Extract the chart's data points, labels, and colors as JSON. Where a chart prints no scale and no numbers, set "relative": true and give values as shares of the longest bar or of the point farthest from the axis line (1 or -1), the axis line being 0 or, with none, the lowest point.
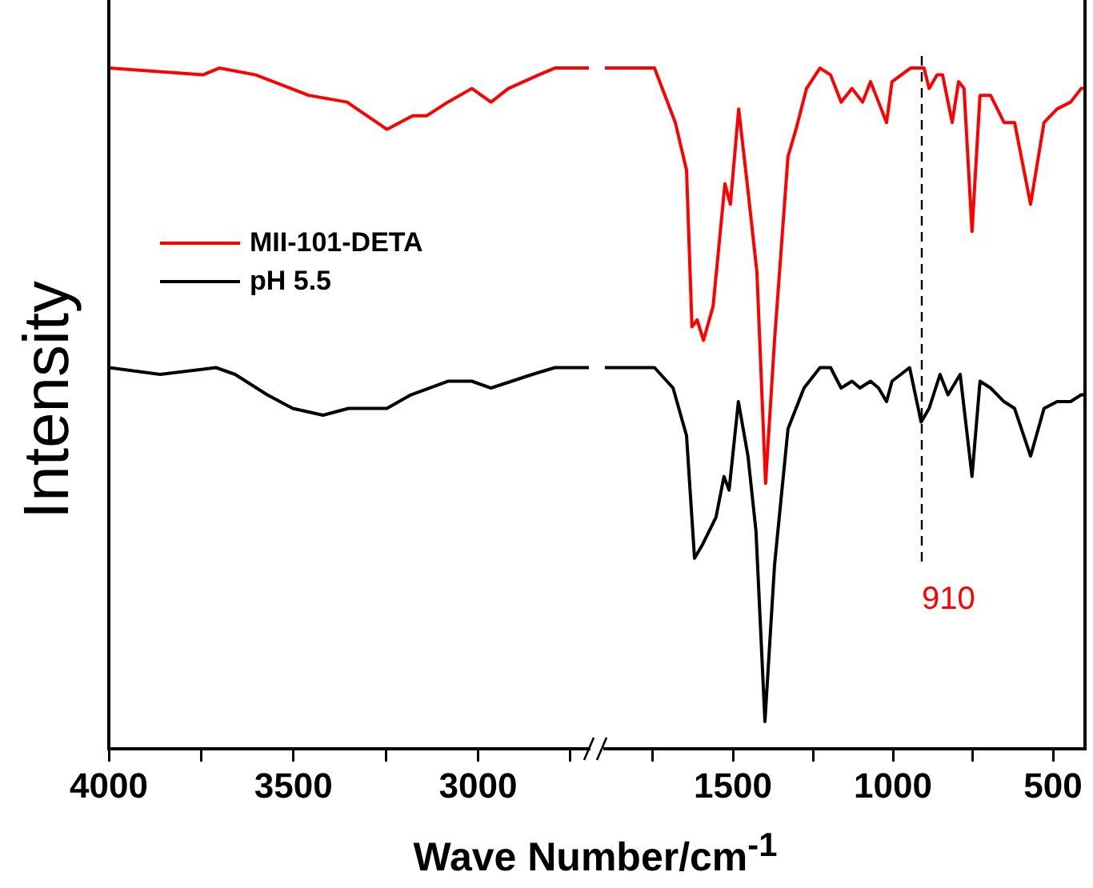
{
  "chart_data": [
    {
      "type": "line",
      "xlabel": "Wave Number/cm$^{-1}$",
      "ylabel": "Intensity",
      "relative": true,
      "tick_labels": "x",
      "legend": "left",
      "line_style": "solid",
      "marker": "none",
      "xlim": [
        4000,
        2700
      ],
      "xticks": [
        4000,
        {
          "value": 3750,
          "label": null
        },
        3500,
        {
          "value": 3250,
          "label": null
        },
        3000,
        {
          "value": 2750,
          "label": null
        }
      ],
      "series": [
        {
          "name": "MII-101-DETA",
          "color": "#ff0000",
          "x": [
            4000,
            3745,
            3701,
            3602,
            3459,
            3355,
            3247,
            3177,
            3139,
            3082,
            3017,
            2965,
            2918,
            2836,
            2792,
            2700
          ],
          "values": [
            1.0,
            0.99,
            1.0,
            0.99,
            0.96,
            0.95,
            0.91,
            0.93,
            0.93,
            0.95,
            0.97,
            0.95,
            0.97,
            0.99,
            1.0,
            1.0
          ]
        },
        {
          "name": "pH 5.5",
          "color": "#000000",
          "x": [
            4000,
            3861,
            3710,
            3658,
            3571,
            3502,
            3420,
            3351,
            3247,
            3182,
            3082,
            3017,
            2965,
            2853,
            2792,
            2700
          ],
          "values": [
            0.56,
            0.55,
            0.56,
            0.55,
            0.52,
            0.5,
            0.49,
            0.5,
            0.5,
            0.52,
            0.54,
            0.54,
            0.53,
            0.55,
            0.56,
            0.56
          ]
        }
      ]
    },
    {
      "type": "line",
      "relative": true,
      "tick_labels": "x",
      "line_style": "solid",
      "marker": "none",
      "xlim": [
        1900,
        400
      ],
      "xticks": [
        {
          "value": 1750,
          "label": null
        },
        1500,
        {
          "value": 1250,
          "label": null
        },
        1000,
        {
          "value": 750,
          "label": null
        },
        500
      ],
      "ref_lines": [
        {
          "axis": "x",
          "value": 910,
          "label": "910",
          "color": "#000000",
          "line_style": "dashed"
        }
      ],
      "series": [
        {
          "color": "#ff0000",
          "x": [
            1900,
            1745,
            1680,
            1645,
            1628,
            1612,
            1592,
            1562,
            1525,
            1508,
            1482,
            1453,
            1425,
            1398,
            1370,
            1328,
            1303,
            1270,
            1228,
            1195,
            1162,
            1128,
            1095,
            1070,
            1045,
            1020,
            1003,
            945,
            903,
            887,
            862,
            845,
            815,
            795,
            778,
            753,
            728,
            695,
            653,
            620,
            570,
            528,
            487,
            445,
            412,
            400
          ],
          "values": [
            1.0,
            1.0,
            0.92,
            0.85,
            0.62,
            0.63,
            0.6,
            0.65,
            0.83,
            0.8,
            0.94,
            0.82,
            0.7,
            0.39,
            0.6,
            0.87,
            0.91,
            0.97,
            1.0,
            0.99,
            0.95,
            0.97,
            0.95,
            0.98,
            0.95,
            0.92,
            0.98,
            1.0,
            1.0,
            0.97,
            0.99,
            0.99,
            0.92,
            0.98,
            0.97,
            0.76,
            0.96,
            0.96,
            0.92,
            0.92,
            0.8,
            0.92,
            0.94,
            0.95,
            0.97,
            0.97
          ]
        },
        {
          "color": "#000000",
          "x": [
            1900,
            1745,
            1687,
            1645,
            1620,
            1595,
            1553,
            1528,
            1512,
            1483,
            1453,
            1428,
            1400,
            1370,
            1328,
            1278,
            1228,
            1195,
            1162,
            1128,
            1103,
            1070,
            1045,
            1020,
            1003,
            948,
            912,
            887,
            853,
            828,
            790,
            753,
            728,
            695,
            653,
            620,
            570,
            528,
            487,
            445,
            412,
            400
          ],
          "values": [
            0.56,
            0.56,
            0.53,
            0.46,
            0.28,
            0.3,
            0.34,
            0.4,
            0.38,
            0.51,
            0.43,
            0.32,
            0.04,
            0.27,
            0.47,
            0.53,
            0.56,
            0.56,
            0.53,
            0.54,
            0.53,
            0.54,
            0.53,
            0.51,
            0.54,
            0.56,
            0.48,
            0.5,
            0.55,
            0.52,
            0.55,
            0.4,
            0.54,
            0.53,
            0.51,
            0.5,
            0.43,
            0.5,
            0.51,
            0.51,
            0.52,
            0.52
          ]
        }
      ]
    }
  ]
}
